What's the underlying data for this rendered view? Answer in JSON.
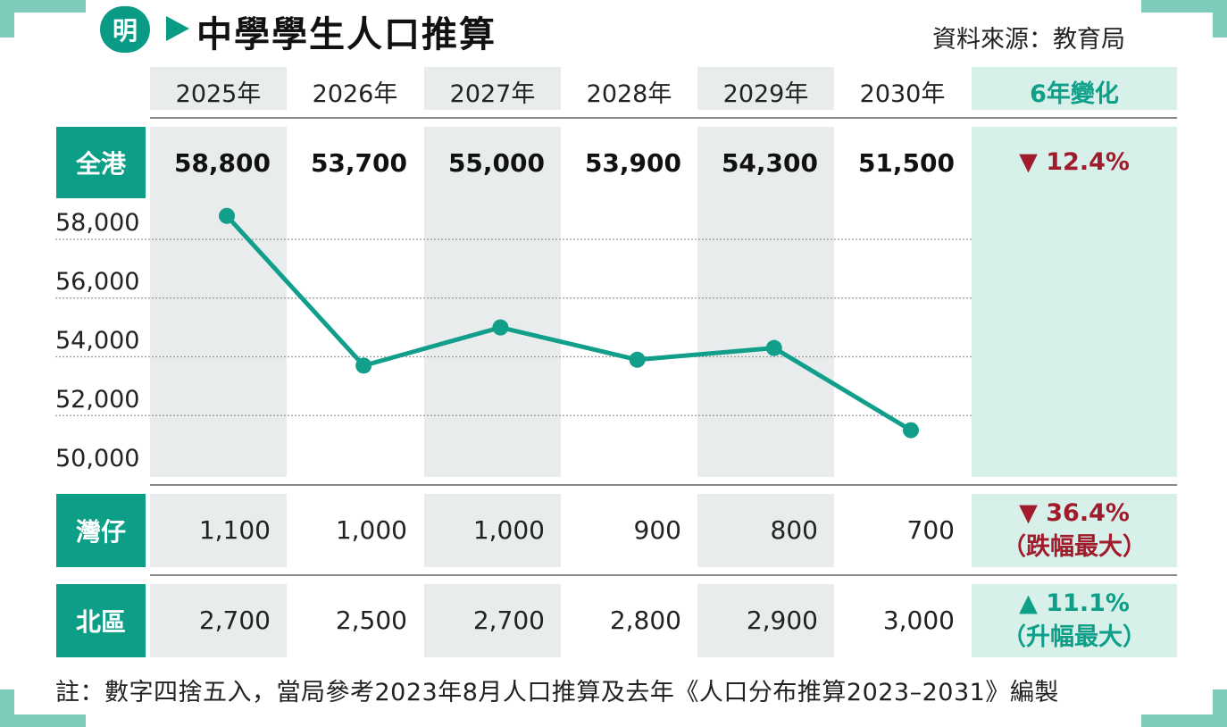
{
  "header": {
    "logo_char": "明",
    "title": "中學學生人口推算",
    "source": "資料來源：教育局"
  },
  "table": {
    "years": [
      "2025年",
      "2026年",
      "2027年",
      "2028年",
      "2029年",
      "2030年"
    ],
    "change_header": "6年變化",
    "rows": {
      "all": {
        "label": "全港",
        "values": [
          "58,800",
          "53,700",
          "55,000",
          "53,900",
          "54,300",
          "51,500"
        ],
        "change": "▼ 12.4%"
      },
      "wanchai": {
        "label": "灣仔",
        "values": [
          "1,100",
          "1,000",
          "1,000",
          "900",
          "800",
          "700"
        ],
        "change": "▼ 36.4%",
        "change_note": "（跌幅最大）"
      },
      "north": {
        "label": "北區",
        "values": [
          "2,700",
          "2,500",
          "2,700",
          "2,800",
          "2,900",
          "3,000"
        ],
        "change": "▲ 11.1%",
        "change_note": "（升幅最大）"
      }
    }
  },
  "colors": {
    "line": "#119e8a",
    "accent": "#0d9e88",
    "down": "#a01c2c",
    "shade": "#e8eced"
  },
  "chart_data": {
    "type": "line",
    "title": "中學學生人口推算",
    "categories": [
      "2025年",
      "2026年",
      "2027年",
      "2028年",
      "2029年",
      "2030年"
    ],
    "series": [
      {
        "name": "全港",
        "values": [
          58800,
          53700,
          55000,
          53900,
          54300,
          51500
        ]
      }
    ],
    "yticks": [
      "58,000",
      "56,000",
      "54,000",
      "52,000",
      "50,000"
    ],
    "ytick_values": [
      58000,
      56000,
      54000,
      52000,
      50000
    ],
    "ylim": [
      50000,
      58000
    ],
    "grid": true
  },
  "footnote": "註：數字四捨五入，當局參考2023年8月人口推算及去年《人口分布推算2023–2031》編製"
}
